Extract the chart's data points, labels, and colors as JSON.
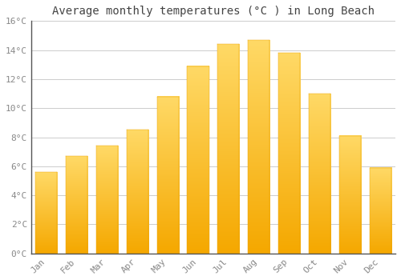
{
  "months": [
    "Jan",
    "Feb",
    "Mar",
    "Apr",
    "May",
    "Jun",
    "Jul",
    "Aug",
    "Sep",
    "Oct",
    "Nov",
    "Dec"
  ],
  "values": [
    5.6,
    6.7,
    7.4,
    8.5,
    10.8,
    12.9,
    14.4,
    14.7,
    13.8,
    11.0,
    8.1,
    5.9
  ],
  "bar_color_bottom": "#F5A800",
  "bar_color_top": "#FFD966",
  "background_color": "#FFFFFF",
  "grid_color": "#CCCCCC",
  "title": "Average monthly temperatures (°C ) in Long Beach",
  "title_fontsize": 10,
  "tick_label_color": "#888888",
  "tick_fontsize": 8,
  "ylim": [
    0,
    16
  ],
  "ytick_interval": 2,
  "spine_color": "#555555",
  "bar_width": 0.72
}
